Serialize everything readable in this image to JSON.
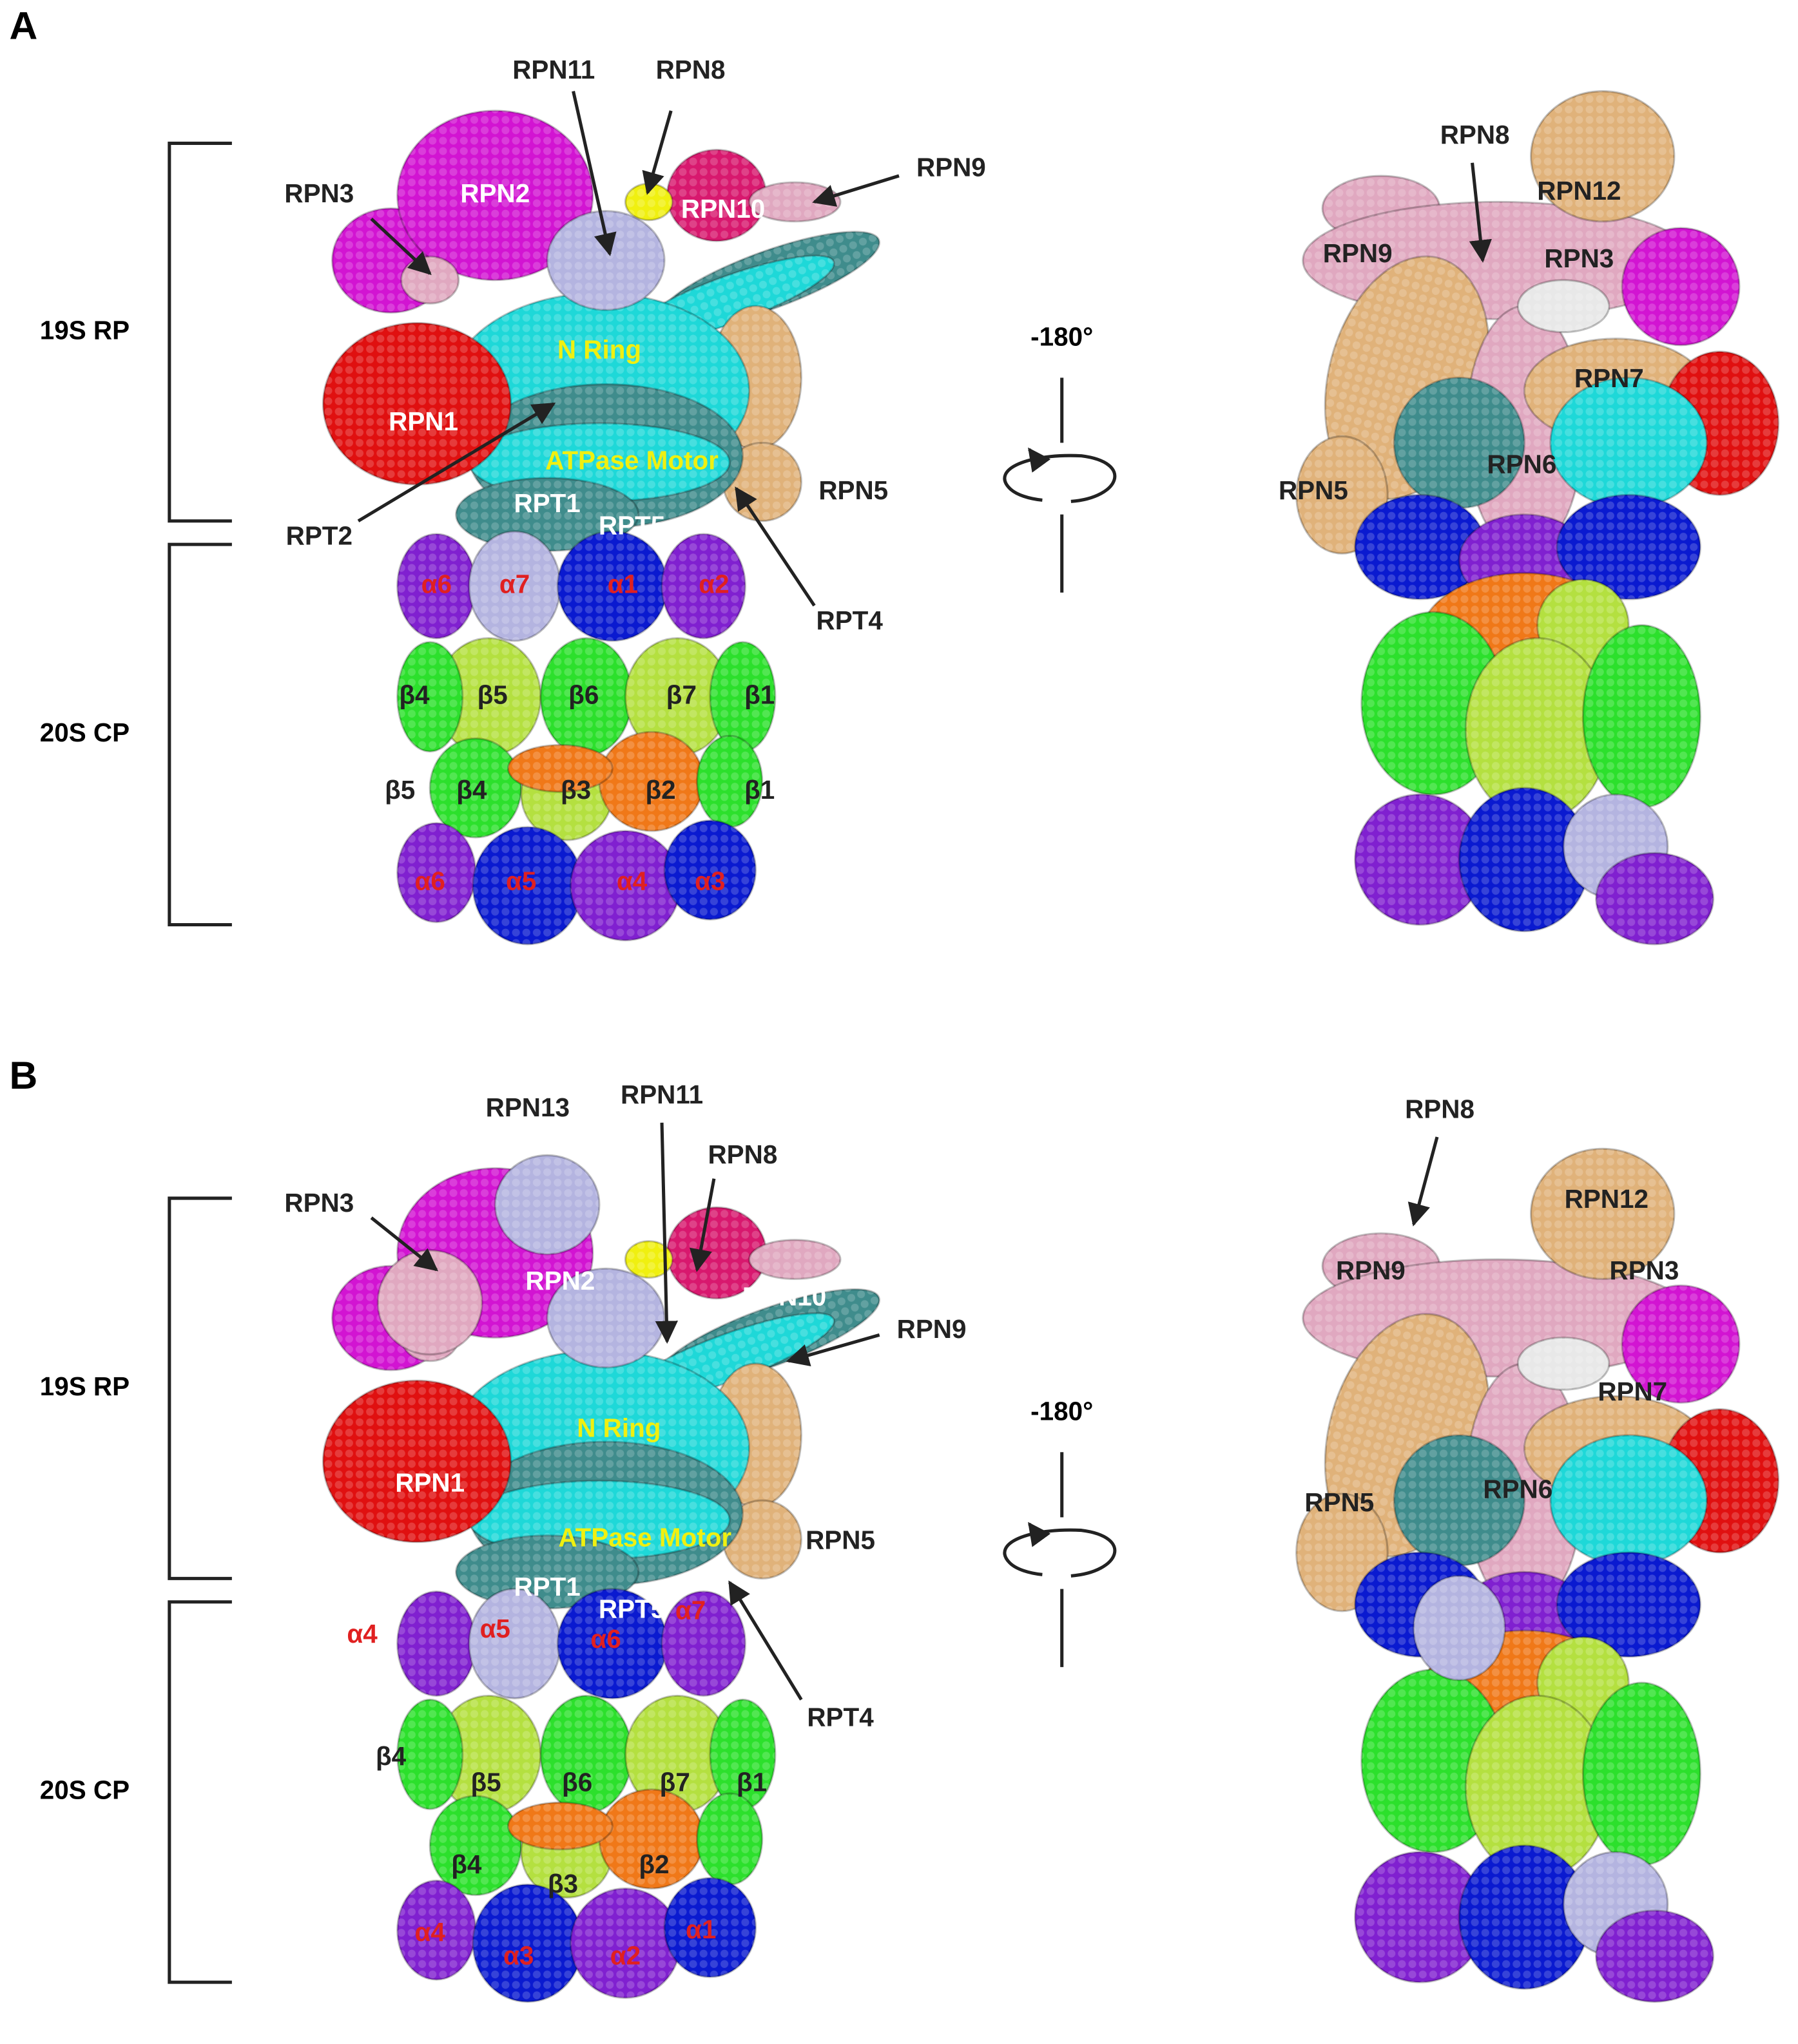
{
  "panels": [
    {
      "label": "A",
      "regions": [
        "19S RP",
        "20S CP"
      ],
      "rotation": "-180°",
      "front_view": {
        "labels": [
          "RPN11",
          "RPN8",
          "RPN9",
          "RPN3",
          "RPN2",
          "RPN10",
          "N Ring",
          "RPN1",
          "ATPase Motor",
          "RPT1",
          "RPT5",
          "RPN5",
          "RPT2",
          "RPT4",
          "α6",
          "α7",
          "α1",
          "α2",
          "β4",
          "β5",
          "β6",
          "β7",
          "β1",
          "β5",
          "β4",
          "β3",
          "β2",
          "β1",
          "α6",
          "α5",
          "α4",
          "α3"
        ]
      },
      "back_view": {
        "labels": [
          "RPN8",
          "RPN12",
          "RPN9",
          "RPN3",
          "RPN7",
          "RPN6",
          "RPN5"
        ]
      }
    },
    {
      "label": "B",
      "regions": [
        "19S RP",
        "20S CP"
      ],
      "rotation": "-180°",
      "front_view": {
        "labels": [
          "RPN13",
          "RPN11",
          "RPN8",
          "RPN3",
          "RPN2",
          "RPN10",
          "RPN9",
          "N Ring",
          "RPN1",
          "ATPase Motor",
          "RPN5",
          "RPT1",
          "RPT5",
          "RPT4",
          "α4",
          "α5",
          "α6",
          "α7",
          "β4",
          "β5",
          "β6",
          "β7",
          "β1",
          "β4",
          "β3",
          "β2",
          "α4",
          "α3",
          "α2",
          "α1"
        ]
      },
      "back_view": {
        "labels": [
          "RPN8",
          "RPN12",
          "RPN9",
          "RPN3",
          "RPN7",
          "RPN6",
          "RPN5"
        ]
      }
    }
  ]
}
